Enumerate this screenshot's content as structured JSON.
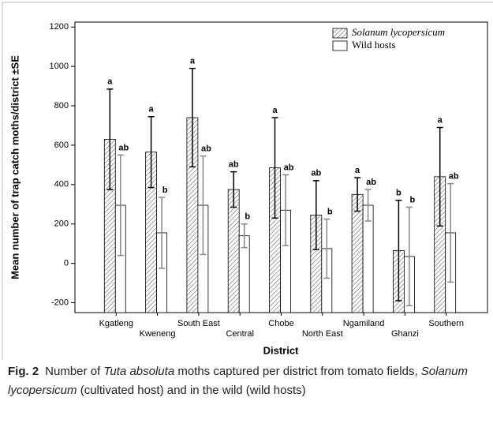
{
  "chart_data": {
    "type": "bar",
    "y_label": "Mean number of  trap catch moths/district ±SE",
    "x_label": "District",
    "categories": [
      "Kgatleng",
      "Kweneng",
      "South East",
      "Central",
      "Chobe",
      "North East",
      "Ngamiland",
      "Ghanzi",
      "Southern"
    ],
    "series": [
      {
        "name": "Solanum lycopersicum",
        "color": "#666666",
        "error_color": "#000000",
        "values": [
          630,
          565,
          740,
          375,
          485,
          245,
          350,
          65,
          440
        ],
        "errors": [
          255,
          180,
          250,
          90,
          255,
          175,
          85,
          255,
          250
        ],
        "letters": [
          "a",
          "a",
          "a",
          "ab",
          "a",
          "ab",
          "a",
          "b",
          "a"
        ]
      },
      {
        "name": "Wild hosts",
        "color": "#ffffff",
        "error_color": "#888888",
        "values": [
          295,
          155,
          295,
          140,
          270,
          75,
          295,
          35,
          155
        ],
        "errors": [
          255,
          180,
          250,
          60,
          180,
          150,
          80,
          250,
          250
        ],
        "letters": [
          "ab",
          "b",
          "ab",
          "b",
          "ab",
          "b",
          "ab",
          "b",
          "ab"
        ]
      }
    ],
    "ylim": [
      -250,
      1225
    ],
    "yticks": [
      -200,
      0,
      200,
      400,
      600,
      800,
      1000,
      1200
    ],
    "legend": "top-right"
  },
  "caption": {
    "label": "Fig. 2",
    "text": [
      "Number of ",
      "Tuta absoluta",
      " moths captured per district from tomato fields, ",
      "Solanum lycopersicum",
      " (cultivated host) and in the wild (wild hosts)"
    ]
  }
}
